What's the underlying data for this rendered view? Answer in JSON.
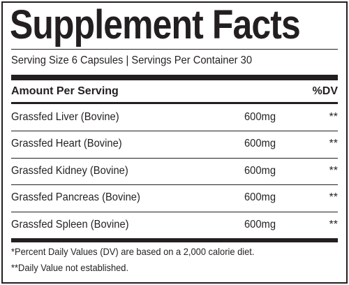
{
  "header": {
    "title": "Supplement Facts",
    "serving": "Serving Size 6 Capsules | Servings Per Container 30"
  },
  "table": {
    "header": [
      "Amount Per Serving",
      "",
      "%DV"
    ],
    "rows": [
      [
        "Grassfed Liver (Bovine)",
        "600mg",
        "**"
      ],
      [
        "Grassfed Heart (Bovine)",
        "600mg",
        "**"
      ],
      [
        "Grassfed Kidney (Bovine)",
        "600mg",
        "**"
      ],
      [
        "Grassfed Pancreas (Bovine)",
        "600mg",
        "**"
      ],
      [
        "Grassfed Spleen (Bovine)",
        "600mg",
        "**"
      ]
    ]
  },
  "footnotes": [
    "*Percent Daily Values (DV) are based on a 2,000 calorie diet.",
    "**Daily Value not established."
  ]
}
